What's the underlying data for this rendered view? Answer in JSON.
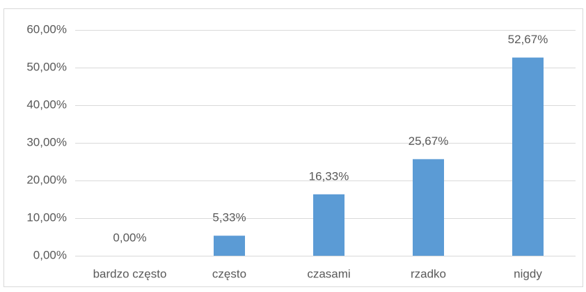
{
  "chart_data": {
    "type": "bar",
    "categories": [
      "bardzo często",
      "często",
      "czasami",
      "rzadko",
      "nigdy"
    ],
    "values": [
      0,
      5.33,
      16.33,
      25.67,
      52.67
    ],
    "value_labels": [
      "0,00%",
      "5,33%",
      "16,33%",
      "25,67%",
      "52,67%"
    ],
    "color": "#5b9bd5",
    "ylim": [
      0,
      60
    ],
    "yticks": [
      {
        "value": 0,
        "label": "0,00%"
      },
      {
        "value": 10,
        "label": "10,00%"
      },
      {
        "value": 20,
        "label": "20,00%"
      },
      {
        "value": 30,
        "label": "30,00%"
      },
      {
        "value": 40,
        "label": "40,00%"
      },
      {
        "value": 50,
        "label": "50,00%"
      },
      {
        "value": 60,
        "label": "60,00%"
      }
    ],
    "grid": true
  }
}
